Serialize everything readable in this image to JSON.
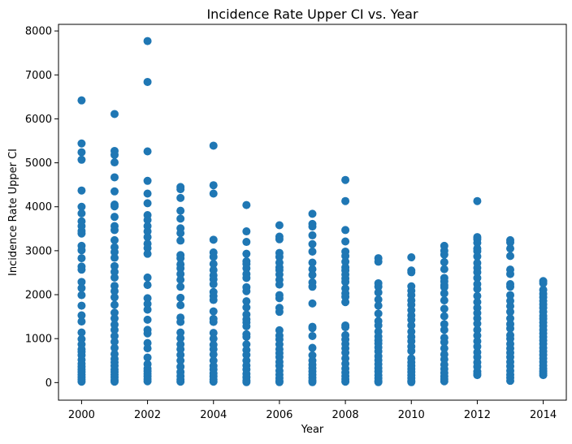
{
  "chart_data": {
    "type": "scatter",
    "title": "Incidence Rate Upper CI vs. Year",
    "xlabel": "Year",
    "ylabel": "Incidence Rate Upper CI",
    "xlim": [
      1999.3,
      2014.7
    ],
    "ylim": [
      -400,
      8150
    ],
    "xticks": [
      2000,
      2002,
      2004,
      2006,
      2008,
      2010,
      2012,
      2014
    ],
    "yticks": [
      0,
      1000,
      2000,
      3000,
      4000,
      5000,
      6000,
      7000,
      8000
    ],
    "grid": false,
    "marker_color": "#1f77b4",
    "series": [
      {
        "points": [
          {
            "year": 2000,
            "values": [
              6420,
              5440,
              5240,
              5070,
              4370,
              4000,
              3850,
              3670,
              3560,
              3450,
              3390,
              3110,
              3010,
              2830,
              2640,
              2570,
              2290,
              2150,
              1990,
              1750,
              1530,
              1390,
              1140,
              990,
              870,
              760,
              700,
              620,
              520,
              430,
              360,
              300,
              240,
              180,
              120,
              70,
              20
            ]
          },
          {
            "year": 2001,
            "values": [
              6110,
              5270,
              5180,
              5010,
              4670,
              4350,
              4050,
              4010,
              3770,
              3560,
              3470,
              3240,
              3080,
              2970,
              2840,
              2650,
              2520,
              2390,
              2200,
              2080,
              1940,
              1770,
              1590,
              1460,
              1320,
              1200,
              1060,
              930,
              790,
              650,
              540,
              460,
              380,
              300,
              240,
              180,
              120,
              60,
              20
            ]
          },
          {
            "year": 2002,
            "values": [
              7770,
              6840,
              5260,
              4590,
              4300,
              4080,
              3810,
              3700,
              3560,
              3440,
              3310,
              3160,
              3060,
              2930,
              2390,
              2220,
              1920,
              1790,
              1660,
              1430,
              1200,
              1120,
              900,
              780,
              570,
              420,
              320,
              260,
              200,
              140,
              80,
              30
            ]
          },
          {
            "year": 2003,
            "values": [
              4450,
              4400,
              4200,
              3910,
              3730,
              3510,
              3400,
              3230,
              2900,
              2830,
              2690,
              2600,
              2470,
              2340,
              2180,
              1930,
              1760,
              1480,
              1380,
              1140,
              1010,
              870,
              760,
              630,
              500,
              360,
              240,
              150,
              70,
              20
            ]
          },
          {
            "year": 2004,
            "values": [
              5390,
              4490,
              4300,
              3250,
              2960,
              2860,
              2700,
              2560,
              2440,
              2350,
              2240,
              2060,
              1970,
              1880,
              1620,
              1450,
              1380,
              1130,
              1000,
              860,
              760,
              640,
              500,
              380,
              300,
              210,
              140,
              70,
              20
            ]
          },
          {
            "year": 2005,
            "values": [
              4040,
              3440,
              3200,
              2930,
              2760,
              2700,
              2600,
              2470,
              2380,
              2170,
              2080,
              1850,
              1710,
              1550,
              1440,
              1370,
              1280,
              1100,
              1040,
              870,
              740,
              630,
              500,
              390,
              300,
              200,
              120,
              50,
              10
            ]
          },
          {
            "year": 2006,
            "values": [
              3580,
              3320,
              3260,
              2950,
              2860,
              2730,
              2620,
              2560,
              2460,
              2340,
              2230,
              1990,
              1920,
              1700,
              1610,
              1190,
              1070,
              980,
              870,
              760,
              670,
              580,
              470,
              380,
              270,
              180,
              100,
              40,
              10
            ]
          },
          {
            "year": 2007,
            "values": [
              3840,
              3610,
              3550,
              3350,
              3150,
              2980,
              2730,
              2580,
              2450,
              2280,
              2180,
              1800,
              1270,
              1240,
              1060,
              790,
              620,
              500,
              410,
              330,
              250,
              180,
              110,
              50,
              10
            ]
          },
          {
            "year": 2008,
            "values": [
              4610,
              4130,
              3470,
              3210,
              2980,
              2880,
              2750,
              2620,
              2550,
              2460,
              2370,
              2290,
              2140,
              2030,
              1950,
              1830,
              1300,
              1260,
              1080,
              980,
              880,
              780,
              680,
              550,
              430,
              320,
              230,
              150,
              80,
              20
            ]
          },
          {
            "year": 2009,
            "values": [
              2830,
              2750,
              2260,
              2180,
              2050,
              1890,
              1750,
              1570,
              1400,
              1300,
              1160,
              1050,
              960,
              890,
              800,
              710,
              600,
              510,
              420,
              330,
              250,
              170,
              100,
              40,
              10
            ]
          },
          {
            "year": 2010,
            "values": [
              2850,
              2550,
              2510,
              2190,
              2090,
              1990,
              1870,
              1770,
              1650,
              1530,
              1430,
              1300,
              1160,
              1040,
              940,
              820,
              720,
              550,
              460,
              380,
              310,
              240,
              170,
              100,
              40,
              10
            ]
          },
          {
            "year": 2011,
            "values": [
              3110,
              3000,
              2910,
              2740,
              2580,
              2380,
              2300,
              2220,
              2170,
              2030,
              1870,
              1680,
              1510,
              1330,
              1200,
              1020,
              920,
              780,
              640,
              530,
              410,
              310,
              220,
              140,
              80,
              30
            ]
          },
          {
            "year": 2012,
            "values": [
              4130,
              3310,
              3260,
              3180,
              3050,
              2990,
              2870,
              2720,
              2610,
              2510,
              2380,
              2240,
              2130,
              1970,
              1830,
              1700,
              1580,
              1460,
              1340,
              1200,
              1070,
              940,
              820,
              690,
              580,
              460,
              360,
              250,
              200,
              170
            ]
          },
          {
            "year": 2013,
            "values": [
              3240,
              3190,
              3050,
              2880,
              2570,
              2470,
              2240,
              2180,
              1990,
              1860,
              1740,
              1610,
              1460,
              1330,
              1230,
              1080,
              1000,
              880,
              780,
              680,
              580,
              470,
              370,
              270,
              180,
              110,
              40
            ]
          },
          {
            "year": 2014,
            "values": [
              2310,
              2260,
              2110,
              2020,
              1940,
              1860,
              1780,
              1700,
              1610,
              1520,
              1450,
              1370,
              1290,
              1200,
              1120,
              1040,
              960,
              880,
              790,
              710,
              630,
              550,
              470,
              390,
              320,
              260,
              210,
              170
            ]
          }
        ]
      }
    ]
  }
}
